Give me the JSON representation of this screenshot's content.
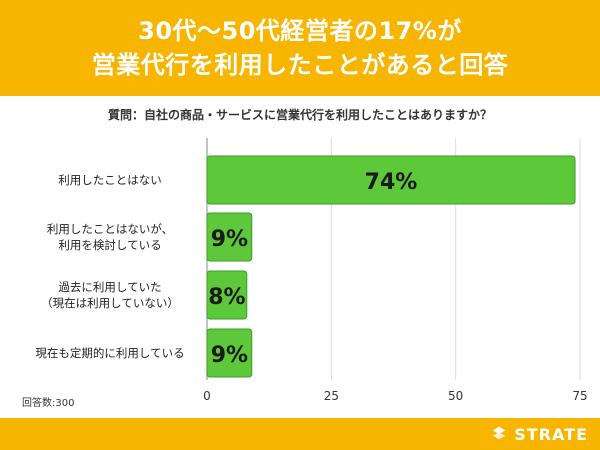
{
  "header": {
    "title_line1": "30代〜50代経営者の17%が",
    "title_line2": "営業代行を利用したことがあると回答"
  },
  "question": "質問：自社の商品・サービスに営業代行を利用したことはありますか？",
  "sample_note": "回答数:300",
  "brand": {
    "name": "STRATE"
  },
  "colors": {
    "bar": "#5cc83a",
    "bar_stroke": "#3f9a2a",
    "accent": "#f7b500"
  },
  "chart_data": {
    "type": "bar",
    "orientation": "horizontal",
    "categories": [
      [
        "利用したことはない"
      ],
      [
        "利用したことはないが、",
        "利用を検討している"
      ],
      [
        "過去に利用していた",
        "（現在は利用していない）"
      ],
      [
        "現在も定期的に利用している"
      ]
    ],
    "values": [
      74,
      9,
      8,
      9
    ],
    "data_labels": [
      "74%",
      "9%",
      "8%",
      "9%"
    ],
    "xlim": [
      0,
      75
    ],
    "xticks": [
      0,
      25,
      50,
      75
    ],
    "grid": true,
    "title": "",
    "xlabel": "",
    "ylabel": ""
  }
}
